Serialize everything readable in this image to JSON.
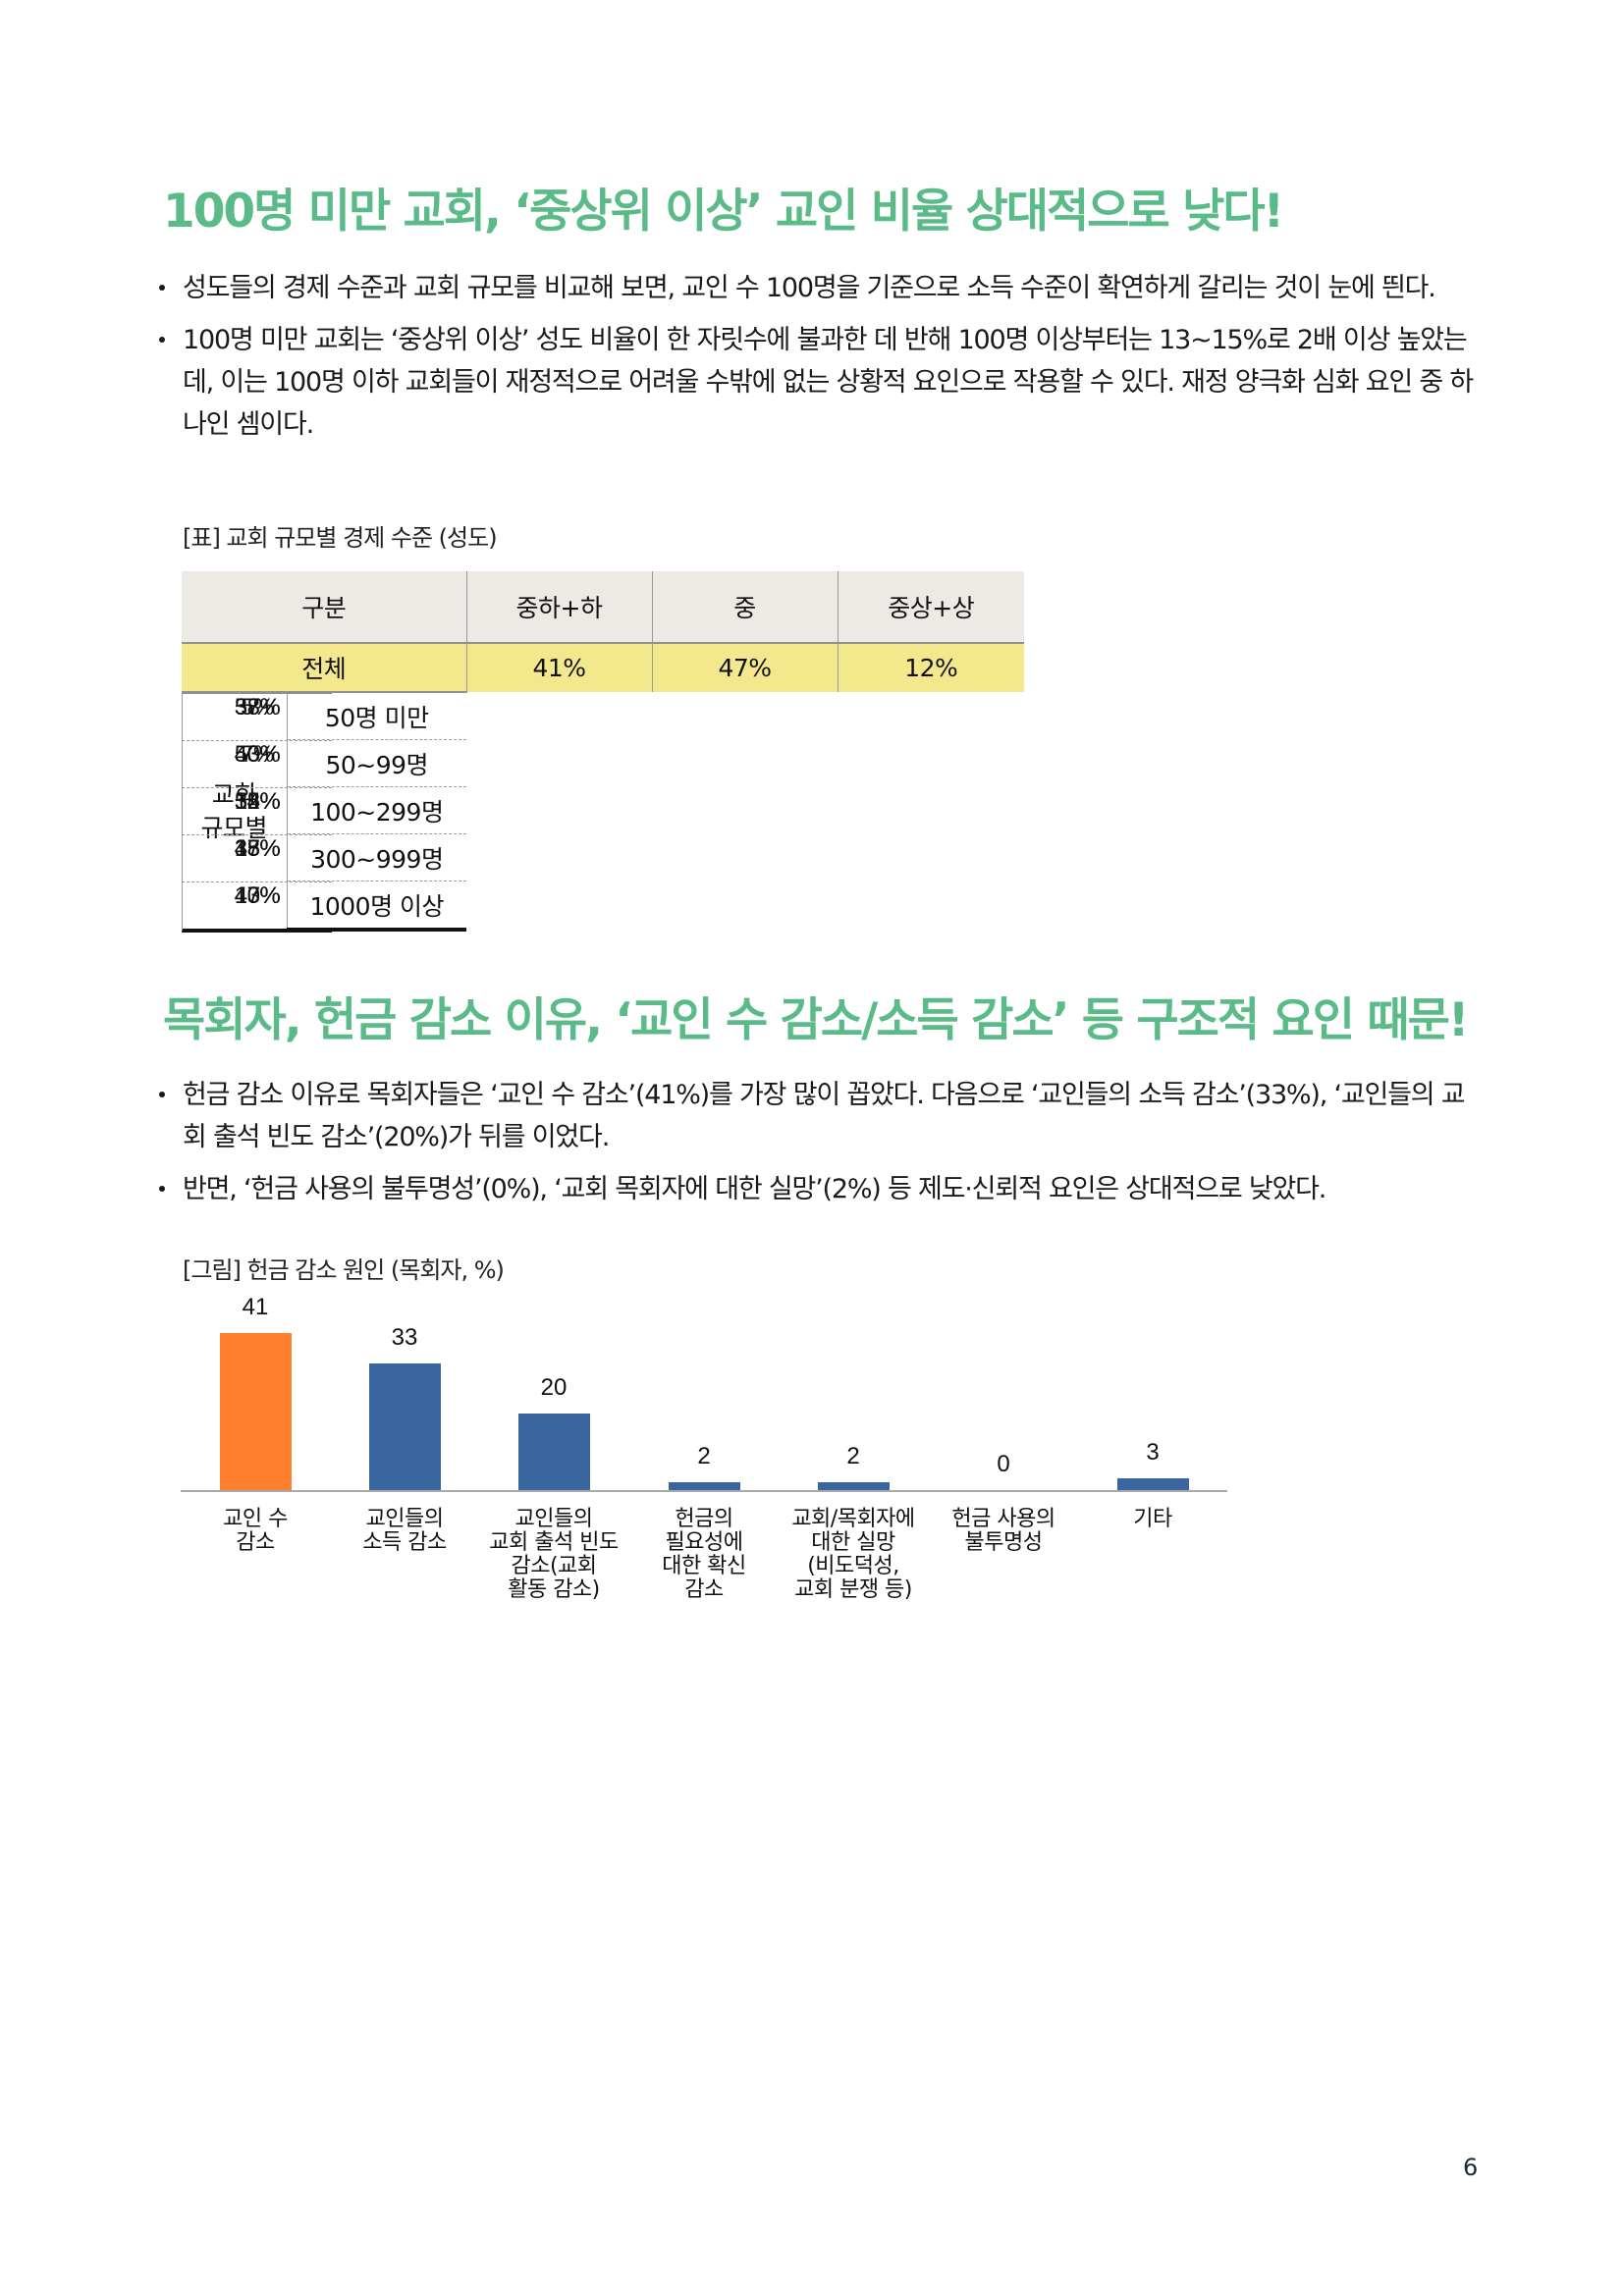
{
  "page_number": "6",
  "section1": {
    "title": "100명 미만 교회, ‘중상위 이상’ 교인 비율 상대적으로 낮다!",
    "bullets": [
      "성도들의 경제 수준과 교회 규모를 비교해 보면, 교인 수 100명을 기준으로 소득 수준이 확연하게 갈리는 것이 눈에 띈다.",
      "100명 미만 교회는 ‘중상위 이상’ 성도 비율이 한 자릿수에 불과한 데 반해 100명 이상부터는 13~15%로 2배 이상 높았는데, 이는 100명 이하 교회들이 재정적으로 어려울 수밖에 없는 상황적 요인으로 작용할 수 있다. 재정 양극화 심화 요인 중 하나인 셈이다."
    ],
    "table_caption": "[표] 교회 규모별 경제 수준 (성도)",
    "table": {
      "headers": [
        "구분",
        "중하+하",
        "중",
        "중상+상"
      ],
      "total": {
        "label": "전체",
        "values": [
          "41%",
          "47%",
          "12%"
        ]
      },
      "group_label_line1": "교회",
      "group_label_line2": "규모별",
      "rows": [
        {
          "label": "50명 미만",
          "values": [
            "57%",
            "38%",
            "5%"
          ]
        },
        {
          "label": "50~99명",
          "values": [
            "50%",
            "43%",
            "7%"
          ]
        },
        {
          "label": "100~299명",
          "values": [
            "32%",
            "54%",
            "15%"
          ]
        },
        {
          "label": "300~999명",
          "values": [
            "38%",
            "47%",
            "15%"
          ]
        },
        {
          "label": "1000명 이상",
          "values": [
            "40%",
            "47%",
            "13%"
          ]
        }
      ]
    }
  },
  "section2": {
    "title": "목회자, 헌금 감소 이유, ‘교인 수 감소/소득 감소’ 등 구조적 요인 때문!",
    "bullets": [
      "헌금 감소 이유로 목회자들은 ‘교인 수 감소’(41%)를 가장 많이 꼽았다. 다음으로 ‘교인들의 소득 감소’(33%), ‘교인들의 교회 출석 빈도 감소’(20%)가 뒤를 이었다.",
      "반면, ‘헌금 사용의 불투명성’(0%), ‘교회 목회자에 대한 실망’(2%) 등 제도·신뢰적 요인은 상대적으로 낮았다."
    ],
    "figure_caption": "[그림] 헌금 감소 원인 (목회자, %)"
  },
  "colors": {
    "heading_green": "#5BBB88",
    "table_header_bg": "#EDE9E5",
    "table_total_bg": "#F3E98C",
    "bar_highlight": "#FF7F2F",
    "bar_default": "#3A66A0"
  },
  "chart_data": {
    "type": "bar",
    "title": "[그림] 헌금 감소 원인 (목회자, %)",
    "xlabel": "",
    "ylabel": "",
    "ylim": [
      0,
      45
    ],
    "grid": false,
    "legend": "none",
    "categories": [
      [
        "교인 수",
        "감소"
      ],
      [
        "교인들의",
        "소득 감소"
      ],
      [
        "교인들의",
        "교회 출석 빈도",
        "감소(교회",
        "활동 감소)"
      ],
      [
        "헌금의",
        "필요성에",
        "대한 확신",
        "감소"
      ],
      [
        "교회/목회자에",
        "대한 실망",
        "(비도덕성,",
        "교회 분쟁 등)"
      ],
      [
        "헌금 사용의",
        "불투명성"
      ],
      [
        "기타"
      ]
    ],
    "values": [
      41,
      33,
      20,
      2,
      2,
      0,
      3
    ],
    "value_labels": [
      "41",
      "33",
      "20",
      "2",
      "2",
      "0",
      "3"
    ],
    "highlight_index": 0
  }
}
